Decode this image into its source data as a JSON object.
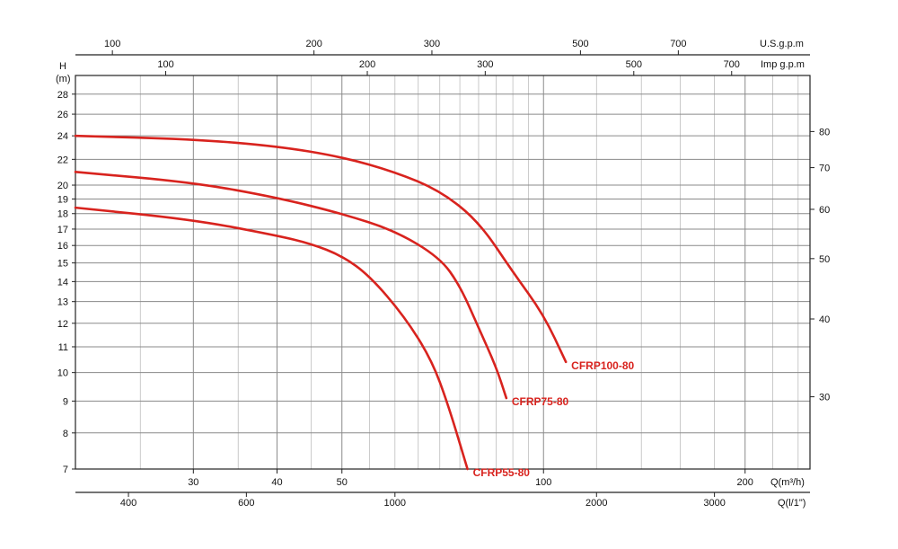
{
  "chart_data": {
    "type": "line",
    "title": "",
    "colors": {
      "series": "#d8231e",
      "grid": "#8a8a8a",
      "axis": "#222222"
    },
    "grid": true,
    "y_axis": {
      "label_line1": "H",
      "label_line2": "(m)",
      "scale": "log",
      "range": [
        7,
        30
      ],
      "ticks": [
        7,
        8,
        9,
        10,
        11,
        12,
        13,
        14,
        15,
        16,
        17,
        18,
        19,
        20,
        22,
        24,
        26,
        28
      ]
    },
    "y2_axis": {
      "label": "",
      "scale": "log",
      "unit_relation": "feet",
      "ticks": [
        30,
        40,
        50,
        60,
        70,
        80
      ]
    },
    "x_axis": {
      "label": "Q(m³/h)",
      "scale": "log",
      "range": [
        20,
        250
      ],
      "major_labels": [
        30,
        40,
        50,
        100,
        200
      ]
    },
    "x_axis_ls": {
      "label": "Q(l/1\")",
      "ticks": [
        400,
        600,
        1000,
        2000,
        3000
      ]
    },
    "x_axis_usgpm": {
      "label": "U.S.g.p.m",
      "ticks": [
        100,
        200,
        300,
        500,
        700
      ]
    },
    "x_axis_impgpm": {
      "label": "Imp g.p.m",
      "ticks": [
        100,
        200,
        300,
        500,
        700
      ]
    },
    "series": [
      {
        "name": "CFRP100-80",
        "points": [
          [
            20,
            24
          ],
          [
            30,
            23.7
          ],
          [
            40,
            23.1
          ],
          [
            50,
            22.2
          ],
          [
            60,
            21
          ],
          [
            70,
            19.6
          ],
          [
            80,
            17.5
          ],
          [
            90,
            14.5
          ],
          [
            100,
            12.4
          ],
          [
            108,
            10.4
          ]
        ]
      },
      {
        "name": "CFRP75-80",
        "points": [
          [
            20,
            21
          ],
          [
            30,
            20.2
          ],
          [
            40,
            19.1
          ],
          [
            50,
            18
          ],
          [
            60,
            16.9
          ],
          [
            70,
            15.3
          ],
          [
            75,
            13.8
          ],
          [
            80,
            11.8
          ],
          [
            85,
            10.2
          ],
          [
            88,
            9.1
          ]
        ]
      },
      {
        "name": "CFRP55-80",
        "points": [
          [
            20,
            18.4
          ],
          [
            30,
            17.6
          ],
          [
            40,
            16.6
          ],
          [
            45,
            16.1
          ],
          [
            50,
            15.4
          ],
          [
            55,
            14.3
          ],
          [
            62,
            12.3
          ],
          [
            68,
            10.5
          ],
          [
            72,
            8.9
          ],
          [
            77,
            7
          ]
        ]
      }
    ]
  }
}
